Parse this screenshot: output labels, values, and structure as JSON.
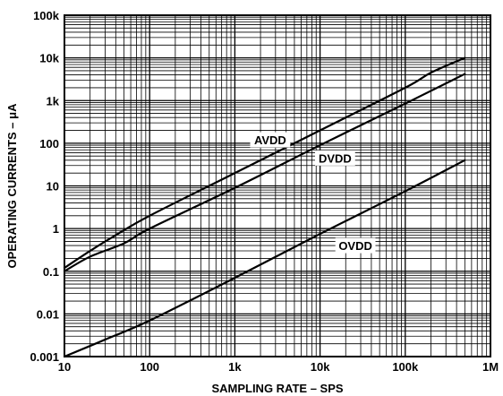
{
  "chart_data": {
    "type": "line",
    "title": "",
    "xlabel": "SAMPLING RATE – SPS",
    "ylabel": "OPERATING CURRENTS – μA",
    "x_scale": "log",
    "y_scale": "log",
    "xlim": [
      10,
      1000000
    ],
    "ylim": [
      0.001,
      100000
    ],
    "grid": true,
    "x_ticks": [
      {
        "value": 10,
        "label": "10"
      },
      {
        "value": 100,
        "label": "100"
      },
      {
        "value": 1000,
        "label": "1k"
      },
      {
        "value": 10000,
        "label": "10k"
      },
      {
        "value": 100000,
        "label": "100k"
      },
      {
        "value": 1000000,
        "label": "1M"
      }
    ],
    "y_ticks": [
      {
        "value": 0.001,
        "label": "0.001"
      },
      {
        "value": 0.01,
        "label": "0.01"
      },
      {
        "value": 0.1,
        "label": "0.1"
      },
      {
        "value": 1,
        "label": "1"
      },
      {
        "value": 10,
        "label": "10"
      },
      {
        "value": 100,
        "label": "100"
      },
      {
        "value": 1000,
        "label": "1k"
      },
      {
        "value": 10000,
        "label": "10k"
      },
      {
        "value": 100000,
        "label": "100k"
      }
    ],
    "series": [
      {
        "name": "AVDD",
        "label_at": {
          "x": 2600,
          "y": 120
        },
        "points": [
          [
            10,
            0.12
          ],
          [
            20,
            0.3
          ],
          [
            40,
            0.7
          ],
          [
            100,
            2
          ],
          [
            1000,
            20
          ],
          [
            10000,
            200
          ],
          [
            100000,
            2000
          ],
          [
            200000,
            4500
          ],
          [
            500000,
            10000
          ]
        ]
      },
      {
        "name": "DVDD",
        "label_at": {
          "x": 15000,
          "y": 45
        },
        "points": [
          [
            10,
            0.1
          ],
          [
            20,
            0.22
          ],
          [
            50,
            0.45
          ],
          [
            100,
            1
          ],
          [
            1000,
            9
          ],
          [
            10000,
            90
          ],
          [
            100000,
            850
          ],
          [
            500000,
            4200
          ]
        ]
      },
      {
        "name": "OVDD",
        "label_at": {
          "x": 26000,
          "y": 0.4
        },
        "points": [
          [
            10,
            0.001
          ],
          [
            30,
            0.0025
          ],
          [
            100,
            0.007
          ],
          [
            1000,
            0.07
          ],
          [
            10000,
            0.75
          ],
          [
            100000,
            7.5
          ],
          [
            500000,
            40
          ]
        ]
      }
    ]
  }
}
